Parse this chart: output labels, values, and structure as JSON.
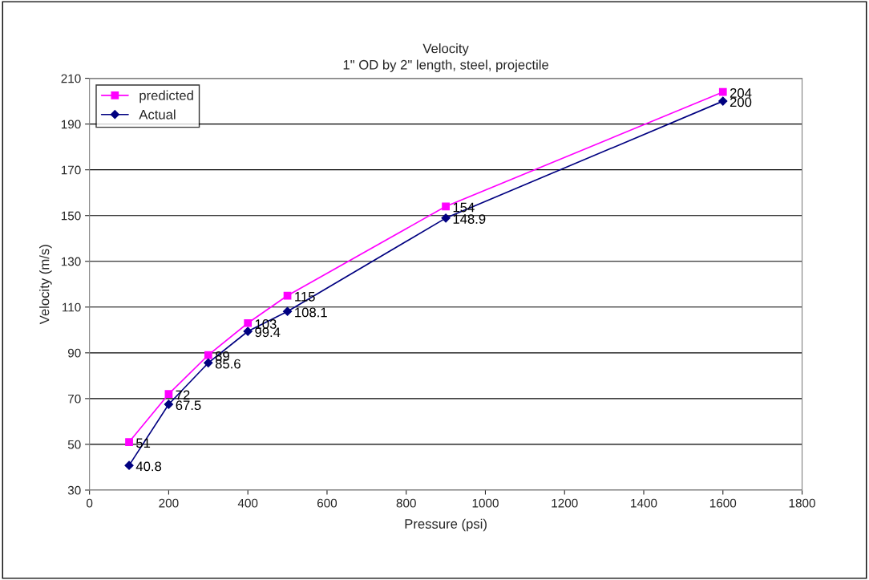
{
  "chart_data": {
    "type": "line",
    "title": "Velocity",
    "subtitle": "1\" OD by 2\" length, steel, projectile",
    "xlabel": "Pressure (psi)",
    "ylabel": "Velocity (m/s)",
    "x": [
      100,
      200,
      300,
      400,
      500,
      900,
      1600
    ],
    "series": [
      {
        "name": "predicted",
        "color": "#ff00ff",
        "marker": "square",
        "values": [
          51,
          72,
          89,
          103,
          115,
          154,
          204
        ]
      },
      {
        "name": "Actual",
        "color": "#000080",
        "marker": "diamond",
        "values": [
          40.8,
          67.5,
          85.6,
          99.4,
          108.1,
          148.9,
          200
        ]
      }
    ],
    "xlim": [
      0,
      1800
    ],
    "xticks": [
      0,
      200,
      400,
      600,
      800,
      1000,
      1200,
      1400,
      1600,
      1800
    ],
    "ylim": [
      30,
      210
    ],
    "yticks": [
      30,
      50,
      70,
      90,
      110,
      130,
      150,
      170,
      190,
      210
    ],
    "grid": "y",
    "legend": "top left",
    "data_labels": true,
    "line_style": "solid"
  }
}
